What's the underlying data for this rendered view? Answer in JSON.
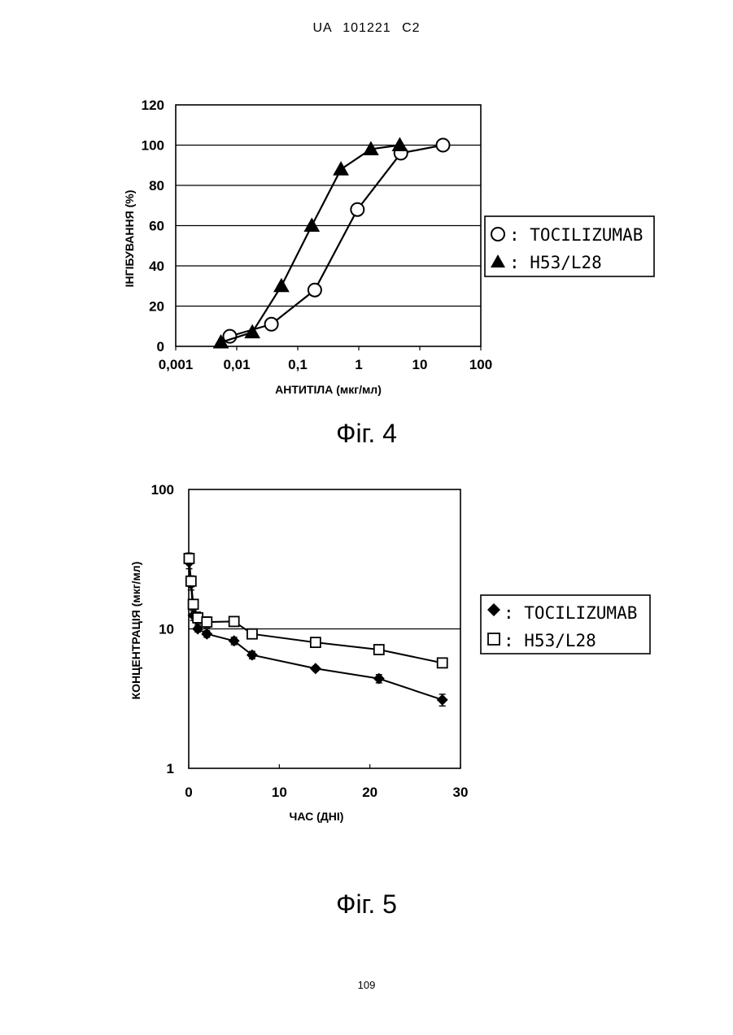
{
  "header": {
    "text": "UA   101221   C2"
  },
  "page_number": "109",
  "figures": [
    {
      "caption": "Фіг. 4"
    },
    {
      "caption": "Фіг. 5"
    }
  ],
  "chart_data": [
    {
      "type": "line",
      "xscale": "log",
      "xlabel": "АНТИТІЛА (мкг/мл)",
      "ylabel": "ІНГІБУВАННЯ (%)",
      "xlim": [
        0.001,
        100
      ],
      "ylim": [
        0,
        120
      ],
      "x_tick_labels": [
        "0,001",
        "0,01",
        "0,1",
        "1",
        "10",
        "100"
      ],
      "y_tick_labels": [
        "0",
        "20",
        "40",
        "60",
        "80",
        "100",
        "120"
      ],
      "grid": "horizontal",
      "legend_position": "right",
      "series": [
        {
          "name": "TOCILIZUMAB",
          "marker": "open-circle",
          "x": [
            0.0077,
            0.037,
            0.19,
            0.95,
            4.9,
            24
          ],
          "y": [
            5,
            11,
            28,
            68,
            96,
            100
          ]
        },
        {
          "name": "H53/L28",
          "marker": "filled-triangle",
          "x": [
            0.0055,
            0.018,
            0.054,
            0.17,
            0.51,
            1.58,
            4.7
          ],
          "y": [
            2,
            7,
            30,
            60,
            88,
            98,
            100
          ]
        }
      ]
    },
    {
      "type": "line",
      "yscale": "log",
      "xlabel": "ЧАС (ДНІ)",
      "ylabel": "КОНЦЕНТРАЦІЯ (мкг/мл)",
      "xlim": [
        0,
        30
      ],
      "ylim": [
        1,
        100
      ],
      "x_tick_labels": [
        "0",
        "10",
        "20",
        "30"
      ],
      "y_tick_labels": [
        "1",
        "10",
        "100"
      ],
      "grid": "horizontal-major",
      "legend_position": "right",
      "series": [
        {
          "name": "TOCILIZUMAB",
          "marker": "filled-diamond",
          "x": [
            0.04,
            0.25,
            0.5,
            1,
            2,
            5,
            7,
            14,
            21,
            28
          ],
          "y": [
            30,
            21,
            12.5,
            10,
            9.2,
            8.2,
            6.5,
            5.2,
            4.4,
            3.1
          ],
          "err": [
            3,
            2,
            1,
            0.5,
            0.5,
            0.5,
            0.4,
            0.2,
            0.3,
            0.3
          ]
        },
        {
          "name": "H53/L28",
          "marker": "open-square",
          "x": [
            0.04,
            0.25,
            0.5,
            1,
            2,
            5,
            7,
            14,
            21,
            28
          ],
          "y": [
            32,
            22,
            15,
            12,
            11.2,
            11.3,
            9.2,
            8.0,
            7.1,
            5.7
          ],
          "err": [
            3,
            2,
            1.2,
            1.2,
            1,
            0.6,
            0.5,
            0.3,
            0.5,
            0.4
          ]
        }
      ]
    }
  ]
}
